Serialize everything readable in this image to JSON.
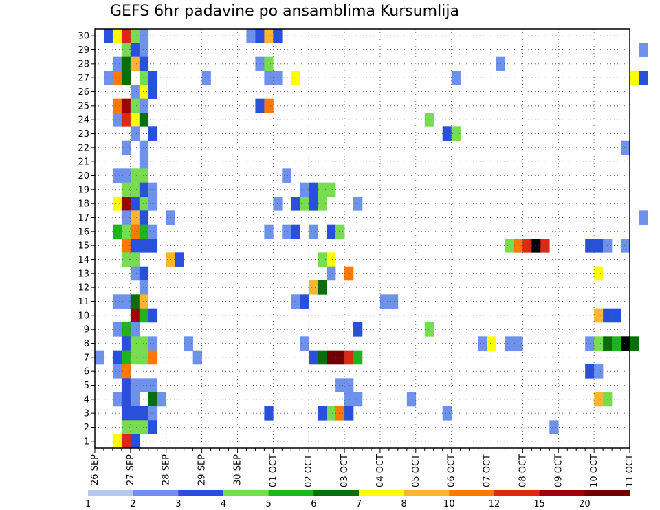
{
  "chart_data": {
    "type": "heatmap",
    "title": "GEFS 6hr padavine po ansamblima Kursumlija",
    "y_tick_labels": [
      "1",
      "2",
      "3",
      "4",
      "5",
      "6",
      "7",
      "8",
      "9",
      "10",
      "11",
      "12",
      "13",
      "14",
      "15",
      "16",
      "17",
      "18",
      "19",
      "20",
      "21",
      "22",
      "23",
      "24",
      "25",
      "26",
      "27",
      "28",
      "29",
      "30"
    ],
    "ylim": [
      0.5,
      30.5
    ],
    "x_tick_labels": [
      "26 SEP",
      "27 SEP",
      "28 SEP",
      "29 SEP",
      "30 SEP",
      "01 OCT",
      "02 OCT",
      "03 OCT",
      "04 OCT",
      "05 OCT",
      "06 OCT",
      "07 OCT",
      "08 OCT",
      "09 OCT",
      "10 OCT",
      "11 OCT"
    ],
    "x_steps_per_day": 4,
    "grid": true,
    "colorbar": {
      "boundaries": [
        "1",
        "2",
        "3",
        "4",
        "5",
        "6",
        "7",
        "8",
        "10",
        "12",
        "15",
        "20"
      ],
      "colors": [
        "#b4c8f0",
        "#6e91eb",
        "#2850dc",
        "#78dc50",
        "#1eb41e",
        "#0a6e0a",
        "#ffff00",
        "#ffb432",
        "#ff7800",
        "#dc2814",
        "#a00000",
        "#6e0000"
      ]
    },
    "cells": [
      [
        30,
        1,
        2
      ],
      [
        30,
        2,
        6
      ],
      [
        30,
        3,
        9
      ],
      [
        30,
        4,
        3
      ],
      [
        30,
        5,
        1
      ],
      [
        30,
        17,
        1
      ],
      [
        30,
        18,
        2
      ],
      [
        30,
        19,
        7
      ],
      [
        30,
        20,
        2
      ],
      [
        29,
        3,
        3
      ],
      [
        29,
        4,
        2
      ],
      [
        29,
        5,
        1
      ],
      [
        29,
        61,
        1
      ],
      [
        28,
        2,
        1
      ],
      [
        28,
        3,
        5
      ],
      [
        28,
        4,
        7
      ],
      [
        28,
        5,
        2
      ],
      [
        28,
        18,
        1
      ],
      [
        28,
        19,
        3
      ],
      [
        28,
        45,
        1
      ],
      [
        27,
        1,
        1
      ],
      [
        27,
        2,
        8
      ],
      [
        27,
        3,
        5
      ],
      [
        27,
        5,
        3
      ],
      [
        27,
        6,
        2
      ],
      [
        27,
        12,
        1
      ],
      [
        27,
        19,
        1
      ],
      [
        27,
        20,
        1
      ],
      [
        27,
        22,
        6
      ],
      [
        27,
        40,
        1
      ],
      [
        27,
        60,
        6
      ],
      [
        27,
        61,
        2
      ],
      [
        26,
        4,
        1
      ],
      [
        26,
        5,
        6
      ],
      [
        26,
        6,
        2
      ],
      [
        25,
        2,
        8
      ],
      [
        25,
        3,
        10
      ],
      [
        25,
        4,
        3
      ],
      [
        25,
        5,
        1
      ],
      [
        25,
        18,
        2
      ],
      [
        25,
        19,
        8
      ],
      [
        24,
        2,
        1
      ],
      [
        24,
        3,
        9
      ],
      [
        24,
        4,
        6
      ],
      [
        24,
        5,
        5
      ],
      [
        24,
        37,
        3
      ],
      [
        23,
        4,
        1
      ],
      [
        23,
        6,
        2
      ],
      [
        23,
        39,
        2
      ],
      [
        23,
        40,
        3
      ],
      [
        22,
        3,
        1
      ],
      [
        22,
        5,
        1
      ],
      [
        22,
        59,
        1
      ],
      [
        21,
        5,
        1
      ],
      [
        20,
        2,
        1
      ],
      [
        20,
        3,
        1
      ],
      [
        20,
        4,
        3
      ],
      [
        20,
        5,
        3
      ],
      [
        20,
        21,
        1
      ],
      [
        19,
        3,
        3
      ],
      [
        19,
        4,
        3
      ],
      [
        19,
        5,
        2
      ],
      [
        19,
        6,
        1
      ],
      [
        19,
        23,
        1
      ],
      [
        19,
        24,
        2
      ],
      [
        19,
        25,
        3
      ],
      [
        19,
        26,
        3
      ],
      [
        18,
        2,
        6
      ],
      [
        18,
        3,
        10
      ],
      [
        18,
        4,
        2
      ],
      [
        18,
        5,
        3
      ],
      [
        18,
        6,
        1
      ],
      [
        18,
        20,
        1
      ],
      [
        18,
        22,
        2
      ],
      [
        18,
        23,
        3
      ],
      [
        18,
        24,
        2
      ],
      [
        18,
        25,
        3
      ],
      [
        18,
        29,
        1
      ],
      [
        17,
        3,
        1
      ],
      [
        17,
        4,
        7
      ],
      [
        17,
        5,
        2
      ],
      [
        17,
        8,
        1
      ],
      [
        17,
        61,
        1
      ],
      [
        16,
        2,
        4
      ],
      [
        16,
        3,
        3
      ],
      [
        16,
        4,
        8
      ],
      [
        16,
        5,
        4
      ],
      [
        16,
        6,
        1
      ],
      [
        16,
        19,
        1
      ],
      [
        16,
        21,
        1
      ],
      [
        16,
        22,
        2
      ],
      [
        16,
        24,
        1
      ],
      [
        16,
        26,
        2
      ],
      [
        16,
        27,
        3
      ],
      [
        15,
        3,
        8
      ],
      [
        15,
        4,
        2
      ],
      [
        15,
        5,
        2
      ],
      [
        15,
        6,
        2
      ],
      [
        15,
        46,
        3
      ],
      [
        15,
        47,
        8
      ],
      [
        15,
        48,
        9
      ],
      [
        15,
        49,
        12
      ],
      [
        15,
        50,
        9
      ],
      [
        15,
        55,
        2
      ],
      [
        15,
        56,
        2
      ],
      [
        15,
        57,
        1
      ],
      [
        15,
        59,
        1
      ],
      [
        14,
        3,
        3
      ],
      [
        14,
        4,
        3
      ],
      [
        14,
        8,
        7
      ],
      [
        14,
        9,
        2
      ],
      [
        14,
        25,
        3
      ],
      [
        14,
        26,
        6
      ],
      [
        13,
        4,
        1
      ],
      [
        13,
        5,
        2
      ],
      [
        13,
        26,
        1
      ],
      [
        13,
        28,
        8
      ],
      [
        13,
        56,
        6
      ],
      [
        12,
        5,
        1
      ],
      [
        12,
        24,
        7
      ],
      [
        12,
        25,
        5
      ],
      [
        11,
        2,
        1
      ],
      [
        11,
        3,
        1
      ],
      [
        11,
        4,
        5
      ],
      [
        11,
        5,
        7
      ],
      [
        11,
        22,
        1
      ],
      [
        11,
        23,
        2
      ],
      [
        11,
        32,
        1
      ],
      [
        11,
        33,
        1
      ],
      [
        10,
        4,
        10
      ],
      [
        10,
        5,
        4
      ],
      [
        10,
        6,
        2
      ],
      [
        10,
        56,
        7
      ],
      [
        10,
        57,
        2
      ],
      [
        10,
        58,
        2
      ],
      [
        9,
        2,
        1
      ],
      [
        9,
        3,
        4
      ],
      [
        9,
        4,
        1
      ],
      [
        9,
        29,
        2
      ],
      [
        9,
        37,
        3
      ],
      [
        8,
        3,
        2
      ],
      [
        8,
        4,
        3
      ],
      [
        8,
        5,
        3
      ],
      [
        8,
        6,
        1
      ],
      [
        8,
        10,
        1
      ],
      [
        8,
        23,
        1
      ],
      [
        8,
        43,
        1
      ],
      [
        8,
        44,
        6
      ],
      [
        8,
        46,
        1
      ],
      [
        8,
        47,
        1
      ],
      [
        8,
        55,
        1
      ],
      [
        8,
        56,
        3
      ],
      [
        8,
        57,
        5
      ],
      [
        8,
        58,
        4
      ],
      [
        8,
        59,
        12
      ],
      [
        8,
        60,
        5
      ],
      [
        7,
        0,
        1
      ],
      [
        7,
        2,
        2
      ],
      [
        7,
        3,
        4
      ],
      [
        7,
        4,
        3
      ],
      [
        7,
        5,
        3
      ],
      [
        7,
        6,
        8
      ],
      [
        7,
        11,
        1
      ],
      [
        7,
        24,
        2
      ],
      [
        7,
        25,
        5
      ],
      [
        7,
        26,
        11
      ],
      [
        7,
        27,
        11
      ],
      [
        7,
        28,
        9
      ],
      [
        7,
        29,
        4
      ],
      [
        6,
        2,
        1
      ],
      [
        6,
        3,
        8
      ],
      [
        6,
        55,
        2
      ],
      [
        6,
        56,
        1
      ],
      [
        5,
        3,
        2
      ],
      [
        5,
        4,
        1
      ],
      [
        5,
        5,
        1
      ],
      [
        5,
        6,
        1
      ],
      [
        5,
        27,
        1
      ],
      [
        5,
        28,
        1
      ],
      [
        4,
        2,
        1
      ],
      [
        4,
        3,
        2
      ],
      [
        4,
        4,
        1
      ],
      [
        4,
        6,
        5
      ],
      [
        4,
        7,
        1
      ],
      [
        4,
        28,
        1
      ],
      [
        4,
        29,
        1
      ],
      [
        4,
        35,
        1
      ],
      [
        4,
        56,
        7
      ],
      [
        4,
        57,
        3
      ],
      [
        3,
        3,
        2
      ],
      [
        3,
        4,
        2
      ],
      [
        3,
        5,
        2
      ],
      [
        3,
        6,
        1
      ],
      [
        3,
        19,
        2
      ],
      [
        3,
        25,
        2
      ],
      [
        3,
        26,
        3
      ],
      [
        3,
        27,
        8
      ],
      [
        3,
        28,
        2
      ],
      [
        3,
        39,
        1
      ],
      [
        2,
        3,
        3
      ],
      [
        2,
        4,
        3
      ],
      [
        2,
        5,
        3
      ],
      [
        2,
        6,
        2
      ],
      [
        2,
        51,
        1
      ],
      [
        1,
        2,
        6
      ],
      [
        1,
        3,
        9
      ],
      [
        1,
        4,
        2
      ]
    ]
  }
}
